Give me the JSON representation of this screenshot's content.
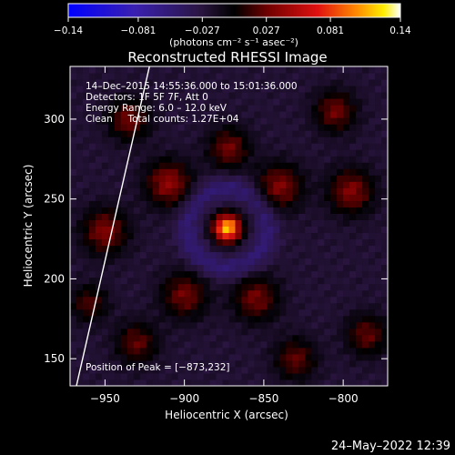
{
  "chart_data": {
    "type": "heatmap",
    "title": "Reconstructed RHESSI Image",
    "xlabel": "Heliocentric X (arcsec)",
    "ylabel": "Heliocentric Y (arcsec)",
    "xlim": [
      -972,
      -772
    ],
    "ylim": [
      133,
      333
    ],
    "x_ticks": [
      -950,
      -900,
      -850,
      -800
    ],
    "x_tick_labels": [
      "−950",
      "−900",
      "−850",
      "−800"
    ],
    "y_ticks": [
      150,
      200,
      250,
      300
    ],
    "y_tick_labels": [
      "150",
      "200",
      "250",
      "300"
    ],
    "colorbar": {
      "min": -0.14,
      "max": 0.14,
      "ticks": [
        -0.14,
        -0.081,
        -0.027,
        0.027,
        0.081,
        0.14
      ],
      "tick_labels": [
        "−0.14",
        "−0.081",
        "−0.027",
        "0.027",
        "0.081",
        "0.14"
      ],
      "unit_label": "(photons cm⁻² s⁻¹ asec⁻²)",
      "colors": [
        "#0000ff",
        "#5a2aa8",
        "#2a1540",
        "#000000",
        "#7a0000",
        "#e81010",
        "#ff8800",
        "#ffee00",
        "#ffffff"
      ]
    },
    "info_lines": [
      "14–Dec–2015 14:55:36.000 to 15:01:36.000",
      "Detectors: 1F 5F 7F, Att 0",
      "Energy Range: 6.0 – 12.0 keV",
      "Clean     Total counts: 1.27E+04"
    ],
    "peak_label": "Position of Peak = [−873,232]",
    "peak": {
      "x": -873,
      "y": 232
    },
    "limb_line": [
      [
        -968,
        133
      ],
      [
        -922,
        333
      ]
    ],
    "sources": [
      {
        "x": -873,
        "y": 232,
        "sigma": 6,
        "amp": 0.14
      },
      {
        "x": -910,
        "y": 260,
        "sigma": 10,
        "amp": 0.06
      },
      {
        "x": -840,
        "y": 258,
        "sigma": 10,
        "amp": 0.055
      },
      {
        "x": -872,
        "y": 282,
        "sigma": 9,
        "amp": 0.05
      },
      {
        "x": -935,
        "y": 300,
        "sigma": 9,
        "amp": 0.05
      },
      {
        "x": -795,
        "y": 255,
        "sigma": 10,
        "amp": 0.055
      },
      {
        "x": -805,
        "y": 305,
        "sigma": 9,
        "amp": 0.05
      },
      {
        "x": -950,
        "y": 230,
        "sigma": 10,
        "amp": 0.055
      },
      {
        "x": -900,
        "y": 190,
        "sigma": 10,
        "amp": 0.05
      },
      {
        "x": -855,
        "y": 188,
        "sigma": 10,
        "amp": 0.05
      },
      {
        "x": -830,
        "y": 150,
        "sigma": 9,
        "amp": 0.045
      },
      {
        "x": -930,
        "y": 160,
        "sigma": 9,
        "amp": 0.045
      },
      {
        "x": -785,
        "y": 165,
        "sigma": 9,
        "amp": 0.045
      },
      {
        "x": -960,
        "y": 185,
        "sigma": 8,
        "amp": 0.04
      }
    ]
  },
  "footer": {
    "timestamp": "24–May–2022 12:39"
  }
}
